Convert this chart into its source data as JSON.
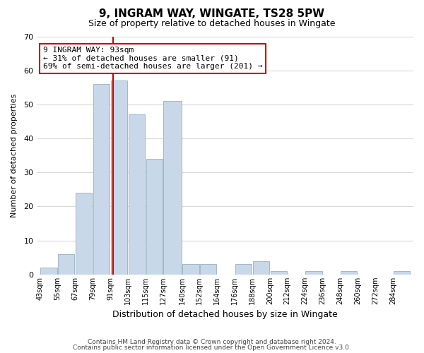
{
  "title": "9, INGRAM WAY, WINGATE, TS28 5PW",
  "subtitle": "Size of property relative to detached houses in Wingate",
  "xlabel": "Distribution of detached houses by size in Wingate",
  "ylabel": "Number of detached properties",
  "bin_labels": [
    "43sqm",
    "55sqm",
    "67sqm",
    "79sqm",
    "91sqm",
    "103sqm",
    "115sqm",
    "127sqm",
    "140sqm",
    "152sqm",
    "164sqm",
    "176sqm",
    "188sqm",
    "200sqm",
    "212sqm",
    "224sqm",
    "236sqm",
    "248sqm",
    "260sqm",
    "272sqm",
    "284sqm"
  ],
  "bin_edges": [
    43,
    55,
    67,
    79,
    91,
    103,
    115,
    127,
    140,
    152,
    164,
    176,
    188,
    200,
    212,
    224,
    236,
    248,
    260,
    272,
    284,
    296
  ],
  "bar_heights": [
    2,
    6,
    24,
    56,
    57,
    47,
    34,
    51,
    3,
    3,
    0,
    3,
    4,
    1,
    0,
    1,
    0,
    1,
    0,
    0,
    1
  ],
  "bar_color": "#c8d8e8",
  "bar_edgecolor": "#a0b8cc",
  "property_line_x": 93,
  "property_line_color": "#cc0000",
  "annotation_text": "9 INGRAM WAY: 93sqm\n← 31% of detached houses are smaller (91)\n69% of semi-detached houses are larger (201) →",
  "annotation_box_edgecolor": "#cc0000",
  "annotation_box_facecolor": "#ffffff",
  "ylim": [
    0,
    70
  ],
  "yticks": [
    0,
    10,
    20,
    30,
    40,
    50,
    60,
    70
  ],
  "footer_line1": "Contains HM Land Registry data © Crown copyright and database right 2024.",
  "footer_line2": "Contains public sector information licensed under the Open Government Licence v3.0.",
  "background_color": "#ffffff",
  "grid_color": "#d8d8d8",
  "title_fontsize": 11,
  "subtitle_fontsize": 9
}
